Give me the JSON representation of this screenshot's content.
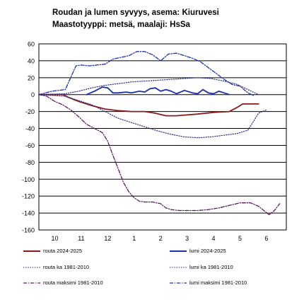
{
  "chart_data": {
    "type": "line",
    "title": "Roudan ja lumen syvyys, asema: Kiuruvesi",
    "subtitle": "Maastotyyppi: metsä, maalaji: HsSa",
    "xlabel": "",
    "ylabel": "",
    "ylim": [
      -160,
      60
    ],
    "yticks": [
      60,
      40,
      20,
      0,
      -20,
      -40,
      -60,
      -80,
      -100,
      -120,
      -140,
      -160
    ],
    "x_tick_labels": [
      "10",
      "11",
      "12",
      "1",
      "2",
      "3",
      "4",
      "5",
      "6"
    ],
    "grid": "horizontal",
    "legend_placement": "bottom",
    "series": [
      {
        "name": "routa 2024-2025",
        "color": "#8b1a1a",
        "style": "solid",
        "points": [
          [
            0.0,
            0
          ],
          [
            0.9,
            0
          ],
          [
            1.1,
            -3
          ],
          [
            1.5,
            -8
          ],
          [
            2.0,
            -13
          ],
          [
            2.5,
            -17
          ],
          [
            3.0,
            -19
          ],
          [
            3.5,
            -20
          ],
          [
            4.0,
            -20
          ],
          [
            4.4,
            -22
          ],
          [
            4.8,
            -25
          ],
          [
            5.2,
            -25
          ],
          [
            5.6,
            -24
          ],
          [
            6.0,
            -23
          ],
          [
            6.6,
            -21
          ],
          [
            7.2,
            -20
          ],
          [
            7.5,
            -15
          ],
          [
            7.7,
            -11
          ],
          [
            8.0,
            -11
          ],
          [
            8.3,
            -11
          ]
        ]
      },
      {
        "name": "lumi 2024-2025",
        "color": "#1a2fb0",
        "style": "solid",
        "points": [
          [
            1.8,
            0
          ],
          [
            2.1,
            4
          ],
          [
            2.4,
            9
          ],
          [
            2.6,
            8
          ],
          [
            2.8,
            2
          ],
          [
            3.0,
            2
          ],
          [
            3.3,
            3
          ],
          [
            3.5,
            2
          ],
          [
            3.8,
            4
          ],
          [
            4.0,
            3
          ],
          [
            4.2,
            7
          ],
          [
            4.4,
            8
          ],
          [
            4.6,
            4
          ],
          [
            4.8,
            6
          ],
          [
            5.0,
            4
          ],
          [
            5.2,
            1
          ],
          [
            5.5,
            5
          ],
          [
            5.8,
            2
          ],
          [
            6.0,
            1
          ],
          [
            6.2,
            6
          ],
          [
            6.4,
            2
          ],
          [
            6.6,
            1
          ],
          [
            6.8,
            4
          ],
          [
            7.0,
            2
          ],
          [
            7.2,
            0
          ]
        ]
      },
      {
        "name": "routa ka 1981-2010",
        "color": "#2a2a8a",
        "style": "dotted",
        "points": [
          [
            0.0,
            0
          ],
          [
            1.0,
            -2
          ],
          [
            1.5,
            -7
          ],
          [
            2.0,
            -12
          ],
          [
            2.5,
            -20
          ],
          [
            3.0,
            -28
          ],
          [
            3.5,
            -33
          ],
          [
            4.0,
            -38
          ],
          [
            4.5,
            -43
          ],
          [
            5.0,
            -47
          ],
          [
            5.5,
            -50
          ],
          [
            6.0,
            -51
          ],
          [
            6.5,
            -50
          ],
          [
            7.0,
            -48
          ],
          [
            7.5,
            -46
          ],
          [
            7.9,
            -42
          ],
          [
            8.1,
            -32
          ],
          [
            8.3,
            -22
          ],
          [
            8.6,
            -18
          ]
        ]
      },
      {
        "name": "lumi ka 1981-2010",
        "color": "#2a2a8a",
        "style": "dotted",
        "points": [
          [
            0.0,
            0
          ],
          [
            1.0,
            1
          ],
          [
            1.5,
            4
          ],
          [
            2.0,
            8
          ],
          [
            2.5,
            11
          ],
          [
            3.0,
            13
          ],
          [
            3.5,
            15
          ],
          [
            4.0,
            16
          ],
          [
            4.5,
            17
          ],
          [
            5.0,
            18
          ],
          [
            5.5,
            19
          ],
          [
            6.0,
            20
          ],
          [
            6.5,
            19
          ],
          [
            7.0,
            16
          ],
          [
            7.5,
            12
          ],
          [
            7.9,
            6
          ],
          [
            8.3,
            0
          ]
        ]
      },
      {
        "name": "routa maksimi 1981-2010",
        "color": "#5a1a5a",
        "style": "dashdot",
        "points": [
          [
            0.0,
            0
          ],
          [
            0.3,
            -2
          ],
          [
            0.6,
            -8
          ],
          [
            0.9,
            -12
          ],
          [
            1.2,
            -18
          ],
          [
            1.5,
            -26
          ],
          [
            1.8,
            -35
          ],
          [
            2.1,
            -40
          ],
          [
            2.4,
            -45
          ],
          [
            2.6,
            -55
          ],
          [
            2.8,
            -72
          ],
          [
            3.0,
            -88
          ],
          [
            3.2,
            -104
          ],
          [
            3.4,
            -115
          ],
          [
            3.6,
            -122
          ],
          [
            3.8,
            -126
          ],
          [
            4.0,
            -127
          ],
          [
            4.3,
            -127
          ],
          [
            4.6,
            -129
          ],
          [
            4.8,
            -134
          ],
          [
            5.0,
            -136
          ],
          [
            5.3,
            -137
          ],
          [
            5.6,
            -137
          ],
          [
            6.0,
            -137
          ],
          [
            6.4,
            -136
          ],
          [
            6.8,
            -134
          ],
          [
            7.2,
            -131
          ],
          [
            7.6,
            -128
          ],
          [
            8.0,
            -128
          ],
          [
            8.3,
            -132
          ],
          [
            8.5,
            -137
          ],
          [
            8.7,
            -142
          ],
          [
            8.9,
            -137
          ],
          [
            9.1,
            -129
          ]
        ]
      },
      {
        "name": "lumi maksimi 1981-2010",
        "color": "#1a2fb0",
        "style": "dashdot",
        "points": [
          [
            0.0,
            0
          ],
          [
            0.5,
            4
          ],
          [
            1.0,
            6
          ],
          [
            1.2,
            20
          ],
          [
            1.4,
            34
          ],
          [
            1.6,
            35
          ],
          [
            1.9,
            34
          ],
          [
            2.2,
            35
          ],
          [
            2.5,
            36
          ],
          [
            2.8,
            42
          ],
          [
            3.1,
            44
          ],
          [
            3.4,
            46
          ],
          [
            3.7,
            51
          ],
          [
            4.0,
            51
          ],
          [
            4.3,
            47
          ],
          [
            4.6,
            40
          ],
          [
            4.9,
            48
          ],
          [
            5.2,
            49
          ],
          [
            5.5,
            46
          ],
          [
            5.8,
            43
          ],
          [
            6.1,
            39
          ],
          [
            6.4,
            32
          ],
          [
            6.7,
            25
          ],
          [
            7.0,
            18
          ],
          [
            7.3,
            12
          ],
          [
            7.6,
            10
          ],
          [
            7.9,
            2
          ],
          [
            8.1,
            -1
          ]
        ]
      }
    ]
  }
}
